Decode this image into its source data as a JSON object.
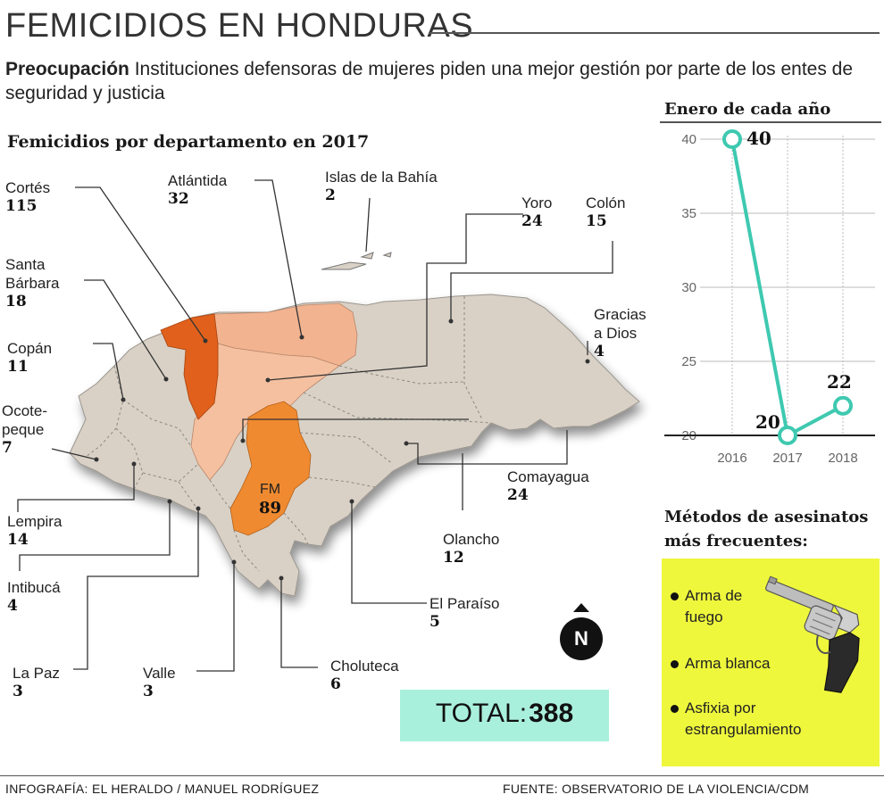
{
  "header": {
    "title": "FEMICIDIOS EN HONDURAS",
    "subtitle_bold": "Preocupación",
    "subtitle_text": " Instituciones defensoras de mujeres piden una mejor gestión por parte de los entes de seguridad y justicia"
  },
  "map": {
    "heading": "Femicidios por departamento en 2017",
    "departments": [
      {
        "name": "Cortés",
        "value": "115"
      },
      {
        "name": "Atlántida",
        "value": "32"
      },
      {
        "name": "Islas de la Bahía",
        "value": "2"
      },
      {
        "name": "Yoro",
        "value": "24"
      },
      {
        "name": "Colón",
        "value": "15"
      },
      {
        "name": "Santa Bárbara",
        "value": "18"
      },
      {
        "name": "Gracias a Dios",
        "value": "4"
      },
      {
        "name": "Copán",
        "value": "11"
      },
      {
        "name": "Ocote-peque",
        "value": "7"
      },
      {
        "name": "Comayagua",
        "value": "24"
      },
      {
        "name": "Lempira",
        "value": "14"
      },
      {
        "name": "Olancho",
        "value": "12"
      },
      {
        "name": "Intibucá",
        "value": "4"
      },
      {
        "name": "El Paraíso",
        "value": "5"
      },
      {
        "name": "La Paz",
        "value": "3"
      },
      {
        "name": "Valle",
        "value": "3"
      },
      {
        "name": "Choluteca",
        "value": "6"
      },
      {
        "name": "FM",
        "value": "89"
      }
    ],
    "north_label": "N",
    "total_label": "TOTAL:",
    "total_value": "388",
    "colors": {
      "base": "#d9d1c6",
      "cortes": "#e0601c",
      "atlantida": "#f2b390",
      "yoro": "#f4c0a0",
      "fm": "#ef8a30"
    }
  },
  "chart_data": {
    "type": "line",
    "title": "Enero de cada año",
    "x": [
      "2016",
      "2017",
      "2018"
    ],
    "series": [
      {
        "values": [
          40,
          20,
          22
        ]
      }
    ],
    "data_labels": [
      "40",
      "20",
      "22"
    ],
    "ylim": [
      20,
      40
    ],
    "yticks": [
      "20",
      "25",
      "30",
      "35",
      "40"
    ],
    "grid": true,
    "line_color": "#3ec9b0"
  },
  "methods": {
    "heading": "Métodos de asesinatos más frecuentes:",
    "items": [
      "Arma de fuego",
      "Arma blanca",
      "Asfixia por estrangulamiento"
    ],
    "icon": "revolver-icon",
    "box_color": "#eef73c"
  },
  "footer": {
    "credit": "INFOGRAFÍA: EL HERALDO / MANUEL RODRÍGUEZ",
    "source": "FUENTE: OBSERVATORIO DE LA VIOLENCIA/CDM"
  }
}
